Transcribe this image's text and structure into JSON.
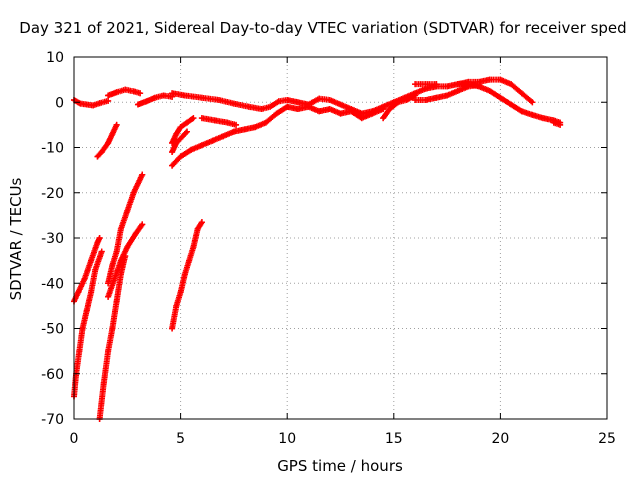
{
  "chart_data": {
    "type": "scatter",
    "title": "Day 321 of 2021, Sidereal Day-to-day VTEC variation (SDTVAR) for receiver sped",
    "xlabel": "GPS time / hours",
    "ylabel": "SDTVAR / TECUs",
    "xlim": [
      0,
      25
    ],
    "ylim": [
      -70,
      10
    ],
    "xticks": [
      0,
      5,
      10,
      15,
      20,
      25
    ],
    "yticks": [
      -70,
      -60,
      -50,
      -40,
      -30,
      -20,
      -10,
      0,
      10
    ],
    "grid": true,
    "marker": "+",
    "color": "#ff0000",
    "series": [
      {
        "name": "s1",
        "points": [
          [
            0.0,
            -44
          ],
          [
            0.2,
            -42
          ],
          [
            0.5,
            -39
          ],
          [
            0.8,
            -35
          ],
          [
            1.1,
            -31
          ],
          [
            1.2,
            -30
          ]
        ]
      },
      {
        "name": "s2",
        "points": [
          [
            0.0,
            -65
          ],
          [
            0.1,
            -60
          ],
          [
            0.25,
            -55
          ],
          [
            0.4,
            -50
          ],
          [
            0.6,
            -46
          ],
          [
            0.8,
            -42
          ],
          [
            1.0,
            -37
          ],
          [
            1.3,
            -33
          ]
        ]
      },
      {
        "name": "s3",
        "points": [
          [
            1.2,
            -70
          ],
          [
            1.4,
            -62
          ],
          [
            1.6,
            -55
          ],
          [
            1.8,
            -50
          ],
          [
            2.0,
            -44
          ],
          [
            2.2,
            -38
          ],
          [
            2.4,
            -34
          ]
        ]
      },
      {
        "name": "s4",
        "points": [
          [
            1.6,
            -40
          ],
          [
            1.8,
            -36
          ],
          [
            2.0,
            -33
          ],
          [
            2.2,
            -28
          ],
          [
            2.5,
            -24
          ],
          [
            2.8,
            -20
          ],
          [
            3.2,
            -16
          ]
        ]
      },
      {
        "name": "s5",
        "points": [
          [
            1.6,
            -43
          ],
          [
            1.9,
            -39
          ],
          [
            2.2,
            -35
          ],
          [
            2.5,
            -32
          ],
          [
            2.9,
            -29
          ],
          [
            3.2,
            -27
          ]
        ]
      },
      {
        "name": "s6",
        "points": [
          [
            1.1,
            -12
          ],
          [
            1.3,
            -11
          ],
          [
            1.6,
            -9
          ],
          [
            1.8,
            -7
          ],
          [
            2.0,
            -5
          ]
        ]
      },
      {
        "name": "s7",
        "points": [
          [
            0.0,
            0.5
          ],
          [
            0.3,
            -0.3
          ],
          [
            0.6,
            -0.5
          ],
          [
            0.9,
            -0.7
          ],
          [
            1.2,
            -0.2
          ],
          [
            1.6,
            0.3
          ]
        ]
      },
      {
        "name": "s8",
        "points": [
          [
            1.6,
            1.5
          ],
          [
            2.0,
            2.2
          ],
          [
            2.4,
            2.8
          ],
          [
            2.8,
            2.4
          ],
          [
            3.1,
            2
          ]
        ]
      },
      {
        "name": "s9",
        "points": [
          [
            3.0,
            -0.5
          ],
          [
            3.4,
            0.2
          ],
          [
            3.8,
            1.0
          ],
          [
            4.2,
            1.5
          ],
          [
            4.6,
            1.2
          ]
        ]
      },
      {
        "name": "s10",
        "points": [
          [
            4.6,
            2.0
          ],
          [
            5.2,
            1.5
          ],
          [
            6.0,
            1.0
          ],
          [
            6.8,
            0.5
          ],
          [
            7.5,
            -0.3
          ],
          [
            8.2,
            -1.0
          ],
          [
            8.8,
            -1.5
          ],
          [
            9.2,
            -1.0
          ],
          [
            9.6,
            0.2
          ],
          [
            10.0,
            0.5
          ]
        ]
      },
      {
        "name": "s11",
        "points": [
          [
            4.6,
            -14
          ],
          [
            5.0,
            -12
          ],
          [
            5.5,
            -10.5
          ],
          [
            6.0,
            -9.5
          ],
          [
            6.5,
            -8.5
          ],
          [
            7.0,
            -7.5
          ],
          [
            7.5,
            -6.5
          ],
          [
            8.0,
            -6.0
          ],
          [
            8.5,
            -5.5
          ],
          [
            9.0,
            -4.5
          ],
          [
            9.5,
            -2.5
          ],
          [
            10.0,
            -1.0
          ]
        ]
      },
      {
        "name": "s12",
        "points": [
          [
            4.6,
            -9
          ],
          [
            4.8,
            -7
          ],
          [
            5.0,
            -5.5
          ],
          [
            5.3,
            -4.5
          ],
          [
            5.6,
            -3.5
          ]
        ]
      },
      {
        "name": "s13",
        "points": [
          [
            4.6,
            -11
          ],
          [
            4.8,
            -9
          ],
          [
            5.1,
            -7.5
          ],
          [
            5.3,
            -6.5
          ]
        ]
      },
      {
        "name": "s14",
        "points": [
          [
            6.0,
            -3.5
          ],
          [
            6.6,
            -4.0
          ],
          [
            7.2,
            -4.5
          ],
          [
            7.6,
            -5.0
          ]
        ]
      },
      {
        "name": "s15",
        "points": [
          [
            4.6,
            -50
          ],
          [
            4.8,
            -45
          ],
          [
            5.0,
            -42
          ],
          [
            5.2,
            -38
          ],
          [
            5.4,
            -35
          ],
          [
            5.6,
            -32
          ],
          [
            5.8,
            -28
          ],
          [
            6.0,
            -26.5
          ]
        ]
      },
      {
        "name": "s16",
        "points": [
          [
            10.0,
            0.5
          ],
          [
            10.5,
            0.0
          ],
          [
            11.0,
            -0.5
          ],
          [
            11.5,
            0.8
          ],
          [
            12.0,
            0.5
          ],
          [
            12.5,
            -0.5
          ],
          [
            13.0,
            -1.5
          ],
          [
            13.5,
            -2.5
          ],
          [
            14.0,
            -2.0
          ],
          [
            14.5,
            -1.0
          ],
          [
            15.0,
            0.0
          ],
          [
            15.5,
            1.0
          ],
          [
            16.0,
            2.0
          ],
          [
            16.5,
            3.0
          ],
          [
            17.0,
            3.5
          ],
          [
            17.5,
            3.5
          ],
          [
            18.0,
            4.0
          ],
          [
            18.5,
            4.5
          ],
          [
            19.0,
            4.5
          ],
          [
            19.5,
            5.0
          ],
          [
            20.0,
            5.0
          ],
          [
            20.5,
            4.0
          ],
          [
            21.0,
            2.0
          ],
          [
            21.5,
            0.0
          ]
        ]
      },
      {
        "name": "s17",
        "points": [
          [
            10.0,
            -1.0
          ],
          [
            10.5,
            -1.5
          ],
          [
            11.0,
            -1.0
          ],
          [
            11.5,
            -2.0
          ],
          [
            12.0,
            -1.5
          ],
          [
            12.5,
            -2.5
          ],
          [
            13.0,
            -2.0
          ],
          [
            13.5,
            -3.5
          ],
          [
            14.0,
            -2.5
          ],
          [
            14.5,
            -1.5
          ]
        ]
      },
      {
        "name": "s18",
        "points": [
          [
            14.5,
            -3.5
          ],
          [
            14.8,
            -1.5
          ],
          [
            15.2,
            0.0
          ],
          [
            15.6,
            0.5
          ],
          [
            16.0,
            1.5
          ]
        ]
      },
      {
        "name": "s19",
        "points": [
          [
            16.0,
            4.0
          ],
          [
            16.5,
            4.0
          ],
          [
            17.0,
            4.0
          ]
        ]
      },
      {
        "name": "s20",
        "points": [
          [
            16.0,
            0.5
          ],
          [
            16.5,
            0.5
          ],
          [
            17.0,
            1.0
          ],
          [
            17.5,
            1.5
          ],
          [
            18.0,
            2.5
          ],
          [
            18.5,
            3.5
          ],
          [
            19.0,
            3.8
          ]
        ]
      },
      {
        "name": "s21",
        "points": [
          [
            18.0,
            4.0
          ],
          [
            18.5,
            4.0
          ],
          [
            19.0,
            3.5
          ],
          [
            19.5,
            2.5
          ],
          [
            20.0,
            1.0
          ],
          [
            20.5,
            -0.5
          ],
          [
            21.0,
            -2.0
          ],
          [
            21.5,
            -2.8
          ],
          [
            22.0,
            -3.5
          ],
          [
            22.5,
            -4.0
          ],
          [
            22.8,
            -4.5
          ]
        ]
      },
      {
        "name": "s22",
        "points": [
          [
            22.5,
            -4.5
          ],
          [
            22.8,
            -5.0
          ]
        ]
      }
    ]
  }
}
